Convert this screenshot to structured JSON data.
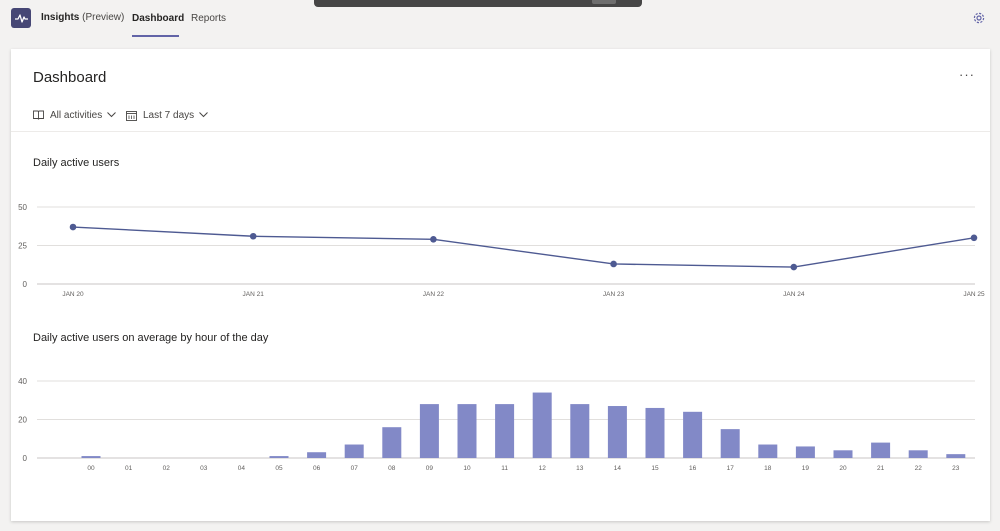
{
  "app": {
    "name": "Insights",
    "sub": "(Preview)"
  },
  "tabs": [
    {
      "label": "Dashboard",
      "active": true
    },
    {
      "label": "Reports",
      "active": false
    }
  ],
  "dashboard": {
    "title": "Dashboard",
    "more": "···",
    "filters": {
      "activities": "All activities",
      "period": "Last 7 days"
    }
  },
  "colors": {
    "accent": "#6264a7",
    "line": "#4e5a92",
    "bar": "#8289c7"
  },
  "chart_data": [
    {
      "type": "line",
      "title": "Daily active users",
      "x": [
        "JAN 20",
        "JAN 21",
        "JAN 22",
        "JAN 23",
        "JAN 24",
        "JAN 25"
      ],
      "values": [
        37,
        31,
        29,
        13,
        11,
        30
      ],
      "ylim": [
        0,
        50
      ],
      "yticks": [
        0,
        25,
        50
      ],
      "grid": true
    },
    {
      "type": "bar",
      "title": "Daily active users on average by hour of the day",
      "categories": [
        "00",
        "01",
        "02",
        "03",
        "04",
        "05",
        "06",
        "07",
        "08",
        "09",
        "10",
        "11",
        "12",
        "13",
        "14",
        "15",
        "16",
        "17",
        "18",
        "19",
        "20",
        "21",
        "22",
        "23"
      ],
      "values": [
        1,
        0,
        0,
        0,
        0,
        1,
        3,
        7,
        16,
        28,
        28,
        28,
        34,
        28,
        27,
        26,
        24,
        15,
        7,
        6,
        4,
        8,
        4,
        2
      ],
      "ylim": [
        0,
        40
      ],
      "yticks": [
        0,
        20,
        40
      ],
      "grid": true
    }
  ]
}
